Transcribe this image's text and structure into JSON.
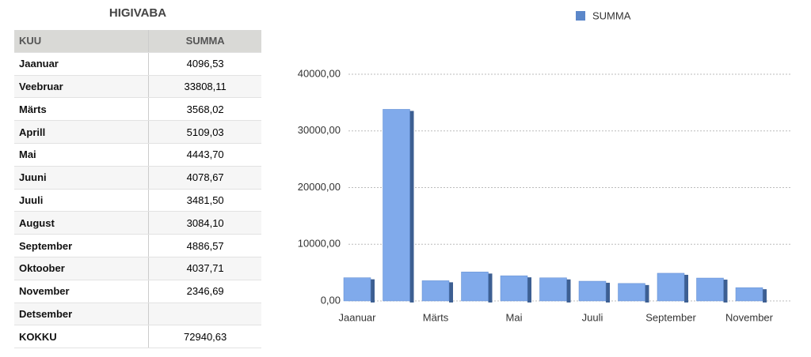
{
  "table": {
    "title": "HIGIVABA",
    "header": [
      "KUU",
      "SUMMA"
    ],
    "rows": [
      [
        "Jaanuar",
        "4096,53"
      ],
      [
        "Veebruar",
        "33808,11"
      ],
      [
        "Märts",
        "3568,02"
      ],
      [
        "Aprill",
        "5109,03"
      ],
      [
        "Mai",
        "4443,70"
      ],
      [
        "Juuni",
        "4078,67"
      ],
      [
        "Juuli",
        "3481,50"
      ],
      [
        "August",
        "3084,10"
      ],
      [
        "September",
        "4886,57"
      ],
      [
        "Oktoober",
        "4037,71"
      ],
      [
        "November",
        "2346,69"
      ],
      [
        "Detsember",
        null
      ]
    ],
    "footer": [
      "KOKKU",
      "72940,63"
    ]
  },
  "chart_data": {
    "type": "bar",
    "categories": [
      "Jaanuar",
      null,
      "Märts",
      null,
      "Mai",
      null,
      "Juuli",
      null,
      "September",
      null,
      "November"
    ],
    "series": [
      {
        "name": "SUMMA",
        "color": "#80aaeb",
        "values": [
          4096.53,
          33808.11,
          3568.02,
          5109.03,
          4443.7,
          4078.67,
          3481.5,
          3084.1,
          4886.57,
          4037.71,
          2346.69
        ]
      }
    ],
    "ylim": [
      0,
      40000
    ],
    "yticks": [
      {
        "value": 0,
        "label": "0,00"
      },
      {
        "value": 10000,
        "label": "10000,00"
      },
      {
        "value": 20000,
        "label": "20000,00"
      },
      {
        "value": 30000,
        "label": "30000,00"
      },
      {
        "value": 40000,
        "label": "40000,00"
      }
    ],
    "grid": true,
    "legend": "top"
  }
}
